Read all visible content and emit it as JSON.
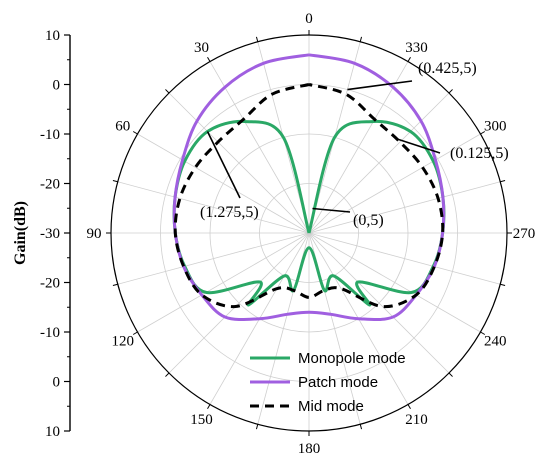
{
  "chart_data": {
    "type": "line",
    "projection": "polar",
    "angle_direction": "counterclockwise",
    "angle_zero": "top",
    "radial_range": [
      -30,
      10
    ],
    "grid": true,
    "ylabel": "Gain(dB)",
    "y_axis_ticks": [
      "10",
      "0",
      "-10",
      "-20",
      "-30",
      "-20",
      "-10",
      "0",
      "10"
    ],
    "angle_ticks": [
      "0",
      "30",
      "60",
      "90",
      "120",
      "150",
      "180",
      "210",
      "240",
      "270",
      "300",
      "330"
    ],
    "legend_position": "bottom-center",
    "series": [
      {
        "name": "Monopole mode",
        "color": "#2aa866",
        "dash": false,
        "angles": [
          0,
          15,
          30,
          45,
          60,
          75,
          90,
          105,
          120,
          135,
          140,
          150,
          165,
          180,
          195,
          210,
          220,
          225,
          240,
          255,
          270,
          285,
          300,
          315,
          330,
          345,
          360
        ],
        "values": [
          -30,
          -10,
          -4,
          -1,
          -1,
          -2,
          -3,
          -4,
          -6,
          -16,
          -11,
          -20,
          -18,
          -27,
          -18,
          -20,
          -11,
          -16,
          -6,
          -4,
          -3,
          -2,
          -1,
          -1,
          -4,
          -10,
          -30
        ]
      },
      {
        "name": "Patch mode",
        "color": "#a05fe0",
        "dash": false,
        "angles": [
          0,
          15,
          30,
          45,
          60,
          75,
          90,
          105,
          120,
          135,
          150,
          165,
          180,
          195,
          210,
          225,
          240,
          255,
          270,
          285,
          300,
          315,
          330,
          345,
          360
        ],
        "values": [
          6,
          5.5,
          4,
          2,
          -0.5,
          -2,
          -3,
          -3.8,
          -5,
          -6,
          -10,
          -13,
          -14,
          -13,
          -10,
          -6,
          -5,
          -3.8,
          -3,
          -2,
          -0.5,
          2,
          4,
          5.5,
          6
        ]
      },
      {
        "name": "Mid mode",
        "color": "#000000",
        "dash": true,
        "angles": [
          0,
          15,
          30,
          45,
          60,
          75,
          90,
          105,
          120,
          135,
          150,
          165,
          180,
          195,
          210,
          225,
          240,
          255,
          270,
          285,
          300,
          315,
          330,
          345,
          360
        ],
        "values": [
          0,
          -1,
          -3.5,
          -4,
          -3.5,
          -3,
          -3,
          -3.8,
          -5,
          -9,
          -17,
          -18,
          -17,
          -18,
          -17,
          -9,
          -5,
          -3.8,
          -3,
          -3,
          -3.5,
          -4,
          -3.5,
          -1,
          0
        ]
      }
    ],
    "annotations": [
      {
        "text": "(0.425,5)",
        "angle": 345,
        "r": 0
      },
      {
        "text": "(0.125,5)",
        "angle": 317,
        "r": -4
      },
      {
        "text": "(1.275,5)",
        "angle": 45,
        "r": -1
      },
      {
        "text": "(0,5)",
        "angle": 352,
        "r": -25
      }
    ]
  }
}
